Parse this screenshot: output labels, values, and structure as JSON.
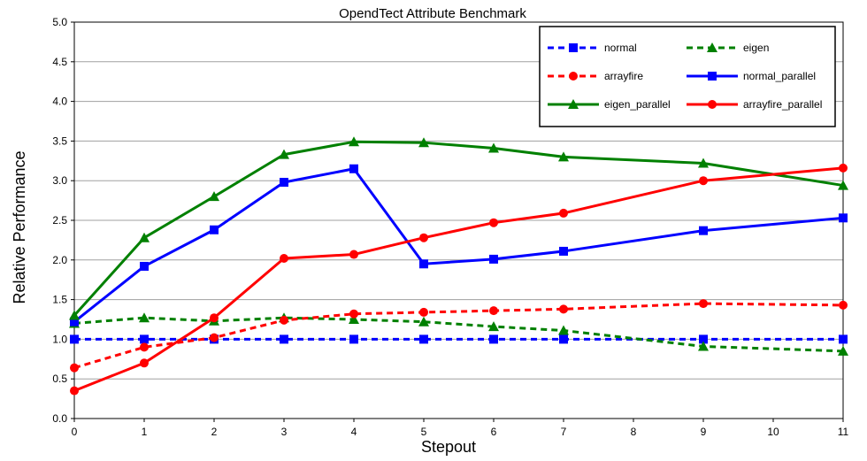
{
  "chart_data": {
    "type": "line",
    "title": "OpendTect Attribute Benchmark",
    "xlabel": "Stepout",
    "ylabel": "Relative Performance",
    "xlim": [
      0,
      11
    ],
    "ylim": [
      0,
      5
    ],
    "x_ticks": [
      0,
      1,
      2,
      3,
      4,
      5,
      6,
      7,
      8,
      9,
      10,
      11
    ],
    "y_ticks": [
      "0.0",
      "0.5",
      "1.0",
      "1.5",
      "2.0",
      "2.5",
      "3.0",
      "3.5",
      "4.0",
      "4.5",
      "5.0"
    ],
    "grid": "horizontal",
    "legend_position": "top-right",
    "series": [
      {
        "name": "normal",
        "color": "#0000ff",
        "dash": true,
        "marker": "square",
        "x": [
          0,
          1,
          2,
          3,
          4,
          5,
          6,
          7,
          9,
          11
        ],
        "y": [
          1.0,
          1.0,
          1.0,
          1.0,
          1.0,
          1.0,
          1.0,
          1.0,
          1.0,
          1.0
        ]
      },
      {
        "name": "eigen",
        "color": "#008000",
        "dash": true,
        "marker": "triangle",
        "x": [
          0,
          1,
          2,
          3,
          4,
          5,
          6,
          7,
          9,
          11
        ],
        "y": [
          1.2,
          1.27,
          1.23,
          1.27,
          1.25,
          1.22,
          1.16,
          1.11,
          0.91,
          0.85
        ]
      },
      {
        "name": "arrayfire",
        "color": "#ff0000",
        "dash": true,
        "marker": "circle",
        "x": [
          0,
          1,
          2,
          3,
          4,
          5,
          6,
          7,
          9,
          11
        ],
        "y": [
          0.64,
          0.9,
          1.02,
          1.24,
          1.32,
          1.34,
          1.36,
          1.38,
          1.45,
          1.43
        ]
      },
      {
        "name": "normal_parallel",
        "color": "#0000ff",
        "dash": false,
        "marker": "square",
        "x": [
          0,
          1,
          2,
          3,
          4,
          5,
          6,
          7,
          9,
          11
        ],
        "y": [
          1.22,
          1.92,
          2.38,
          2.98,
          3.15,
          1.95,
          2.01,
          2.11,
          2.37,
          2.53
        ]
      },
      {
        "name": "eigen_parallel",
        "color": "#008000",
        "dash": false,
        "marker": "triangle",
        "x": [
          0,
          1,
          2,
          3,
          4,
          5,
          6,
          7,
          9,
          11
        ],
        "y": [
          1.3,
          2.28,
          2.8,
          3.33,
          3.49,
          3.48,
          3.41,
          3.3,
          3.22,
          2.94
        ]
      },
      {
        "name": "arrayfire_parallel",
        "color": "#ff0000",
        "dash": false,
        "marker": "circle",
        "x": [
          0,
          1,
          2,
          3,
          4,
          5,
          6,
          7,
          9,
          11
        ],
        "y": [
          0.35,
          0.7,
          1.27,
          2.02,
          2.07,
          2.28,
          2.47,
          2.59,
          3.0,
          3.16
        ]
      }
    ]
  }
}
